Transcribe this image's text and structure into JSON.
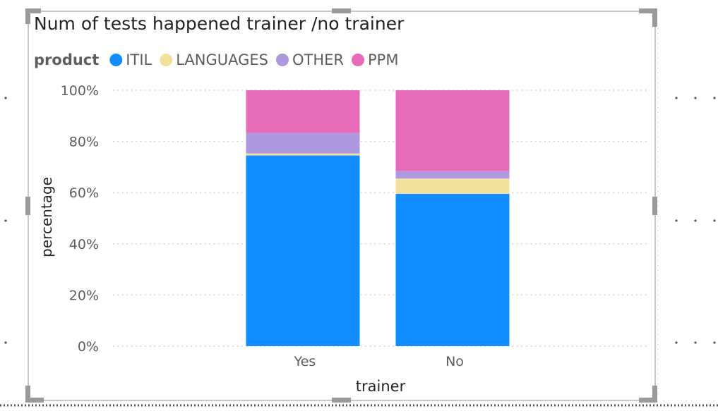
{
  "visual": {
    "title": "Num of tests happened trainer /no trainer",
    "legend_title": "product"
  },
  "chart_data": {
    "type": "bar",
    "stacked": true,
    "normalized": true,
    "categories": [
      "Yes",
      "No"
    ],
    "series": [
      {
        "name": "ITIL",
        "color": "#118DFF",
        "values": [
          74.5,
          59.5
        ]
      },
      {
        "name": "LANGUAGES",
        "color": "#F2E19A",
        "values": [
          0.8,
          6.0
        ]
      },
      {
        "name": "OTHER",
        "color": "#AE98DF",
        "values": [
          8.0,
          2.9
        ]
      },
      {
        "name": "PPM",
        "color": "#E66CB9",
        "values": [
          16.7,
          31.6
        ]
      }
    ],
    "xlabel": "trainer",
    "ylabel": "percentage",
    "yticks": [
      "0%",
      "20%",
      "40%",
      "60%",
      "80%",
      "100%"
    ],
    "ylim": [
      0,
      100
    ],
    "legend_position": "top-left",
    "grid": true
  }
}
